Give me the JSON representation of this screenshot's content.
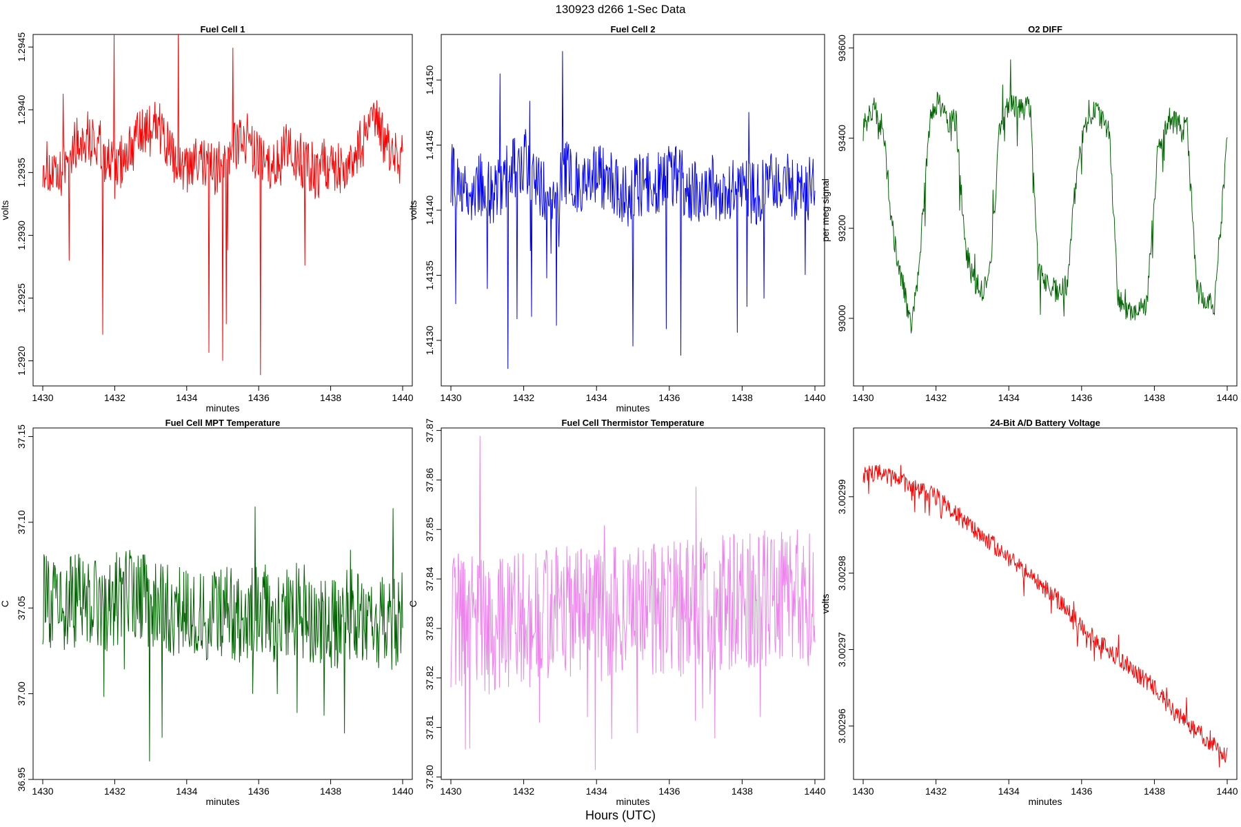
{
  "figure": {
    "title": "130923   d266   1-Sec Data",
    "xlabel": "Hours (UTC)"
  },
  "chart_data": [
    {
      "type": "line",
      "title": "Fuel Cell 1",
      "xlabel": "minutes",
      "ylabel": "volts",
      "color": "#ff0000",
      "xlim": [
        1430,
        1440
      ],
      "ylim": [
        1.2918,
        1.2946
      ],
      "xticks": [
        "1430",
        "1432",
        "1434",
        "1436",
        "1438",
        "1440"
      ],
      "yticks": [
        "1.2920",
        "1.2925",
        "1.2930",
        "1.2935",
        "1.2940",
        "1.2945"
      ],
      "series": [
        {
          "x": [
            1430.0,
            1430.4,
            1430.8,
            1431.2,
            1431.6,
            1432.0,
            1432.4,
            1432.8,
            1433.2,
            1433.6,
            1434.0,
            1434.4,
            1434.8,
            1435.2,
            1435.6,
            1436.0,
            1436.4,
            1436.8,
            1437.2,
            1437.6,
            1438.0,
            1438.4,
            1438.8,
            1439.2,
            1439.6,
            1440.0
          ],
          "y": [
            1.2936,
            1.2934,
            1.2937,
            1.2938,
            1.2937,
            1.2935,
            1.2937,
            1.2938,
            1.2939,
            1.2936,
            1.2935,
            1.2936,
            1.2935,
            1.2937,
            1.2938,
            1.2936,
            1.2935,
            1.2937,
            1.2936,
            1.2935,
            1.2936,
            1.2935,
            1.2937,
            1.2939,
            1.2937,
            1.2936
          ]
        }
      ]
    },
    {
      "type": "line",
      "title": "Fuel Cell 2",
      "xlabel": "minutes",
      "ylabel": "volts",
      "color": "#0000ff",
      "xlim": [
        1430,
        1440
      ],
      "ylim": [
        1.41265,
        1.41535
      ],
      "xticks": [
        "1430",
        "1432",
        "1434",
        "1436",
        "1438",
        "1440"
      ],
      "yticks": [
        "1.4130",
        "1.4135",
        "1.4140",
        "1.4145",
        "1.4150"
      ],
      "series": [
        {
          "x": [
            1430.0,
            1430.4,
            1430.8,
            1431.2,
            1431.6,
            1432.0,
            1432.4,
            1432.8,
            1433.2,
            1433.6,
            1434.0,
            1434.4,
            1434.8,
            1435.2,
            1435.6,
            1436.0,
            1436.4,
            1436.8,
            1437.2,
            1437.6,
            1438.0,
            1438.4,
            1438.8,
            1439.2,
            1439.6,
            1440.0
          ],
          "y": [
            1.4143,
            1.4141,
            1.4142,
            1.4141,
            1.4143,
            1.4144,
            1.4142,
            1.4141,
            1.4143,
            1.4142,
            1.4143,
            1.4142,
            1.4141,
            1.4142,
            1.4142,
            1.4143,
            1.4142,
            1.4141,
            1.4142,
            1.4141,
            1.4142,
            1.4141,
            1.4142,
            1.4142,
            1.4141,
            1.4142
          ]
        }
      ]
    },
    {
      "type": "line",
      "title": "O2 DIFF",
      "xlabel": "",
      "ylabel": "per meg signal",
      "color": "#006400",
      "xlim": [
        1430,
        1440
      ],
      "ylim": [
        92850,
        93630
      ],
      "xticks": [
        "1430",
        "1432",
        "1434",
        "1436",
        "1438",
        "1440"
      ],
      "yticks": [
        "93000",
        "93200",
        "93400",
        "93600"
      ],
      "series": [
        {
          "x": [
            1430.0,
            1430.3,
            1430.55,
            1430.8,
            1431.1,
            1431.3,
            1431.5,
            1431.7,
            1431.85,
            1432.1,
            1432.3,
            1432.55,
            1432.8,
            1433.0,
            1433.3,
            1433.5,
            1433.75,
            1434.0,
            1434.3,
            1434.6,
            1434.8,
            1435.1,
            1435.4,
            1435.6,
            1435.9,
            1436.2,
            1436.5,
            1436.75,
            1437.0,
            1437.25,
            1437.55,
            1437.8,
            1438.1,
            1438.4,
            1438.65,
            1438.9,
            1439.15,
            1439.4,
            1439.65,
            1440.0
          ],
          "y": [
            93420,
            93470,
            93420,
            93200,
            93070,
            92980,
            93080,
            93300,
            93460,
            93480,
            93440,
            93440,
            93160,
            93090,
            93060,
            93120,
            93420,
            93480,
            93460,
            93470,
            93110,
            93070,
            93060,
            93080,
            93360,
            93460,
            93450,
            93420,
            93050,
            93020,
            93010,
            93040,
            93380,
            93440,
            93430,
            93420,
            93080,
            93040,
            93030,
            93400
          ]
        }
      ]
    },
    {
      "type": "line",
      "title": "Fuel Cell MPT Temperature",
      "xlabel": "minutes",
      "ylabel": "C",
      "color": "#006400",
      "xlim": [
        1430,
        1440
      ],
      "ylim": [
        36.95,
        37.155
      ],
      "xticks": [
        "1430",
        "1432",
        "1434",
        "1436",
        "1438",
        "1440"
      ],
      "yticks": [
        "36.95",
        "37.00",
        "37.05",
        "37.10",
        "37.15"
      ],
      "series": [
        {
          "x": [
            1430.0,
            1430.5,
            1431.0,
            1431.5,
            1432.0,
            1432.5,
            1433.0,
            1433.5,
            1434.0,
            1434.5,
            1435.0,
            1435.5,
            1436.0,
            1436.5,
            1437.0,
            1437.5,
            1438.0,
            1438.5,
            1439.0,
            1439.5,
            1440.0
          ],
          "y": [
            37.055,
            37.05,
            37.055,
            37.05,
            37.055,
            37.06,
            37.05,
            37.05,
            37.045,
            37.045,
            37.05,
            37.04,
            37.05,
            37.045,
            37.05,
            37.045,
            37.04,
            37.045,
            37.045,
            37.04,
            37.045
          ]
        }
      ]
    },
    {
      "type": "line",
      "title": "Fuel Cell Thermistor Temperature",
      "xlabel": "minutes",
      "ylabel": "C",
      "color": "#ee82ee",
      "xlim": [
        1430,
        1440
      ],
      "ylim": [
        37.7995,
        37.8705
      ],
      "xticks": [
        "1430",
        "1432",
        "1434",
        "1436",
        "1438",
        "1440"
      ],
      "yticks": [
        "37.80",
        "37.81",
        "37.82",
        "37.83",
        "37.84",
        "37.85",
        "37.86",
        "37.87"
      ],
      "series": [
        {
          "x": [
            1430.0,
            1430.5,
            1431.0,
            1431.5,
            1432.0,
            1432.5,
            1433.0,
            1433.5,
            1434.0,
            1434.5,
            1435.0,
            1435.5,
            1436.0,
            1436.5,
            1437.0,
            1437.5,
            1438.0,
            1438.5,
            1439.0,
            1439.5,
            1440.0
          ],
          "y": [
            37.831,
            37.832,
            37.83,
            37.831,
            37.832,
            37.832,
            37.833,
            37.832,
            37.833,
            37.833,
            37.834,
            37.833,
            37.834,
            37.834,
            37.835,
            37.835,
            37.836,
            37.836,
            37.837,
            37.836,
            37.836
          ]
        }
      ]
    },
    {
      "type": "line",
      "title": "24-Bit A/D Battery Voltage",
      "xlabel": "minutes",
      "ylabel": "volts",
      "color": "#ff0000",
      "xlim": [
        1430,
        1440
      ],
      "ylim": [
        3.002953,
        3.002999
      ],
      "xticks": [
        "1430",
        "1432",
        "1434",
        "1436",
        "1438",
        "1440"
      ],
      "yticks": [
        "3.00296",
        "3.00297",
        "3.00298",
        "3.00299"
      ],
      "series": [
        {
          "x": [
            1430.0,
            1430.5,
            1431.0,
            1431.5,
            1432.0,
            1432.5,
            1433.0,
            1433.5,
            1434.0,
            1434.5,
            1435.0,
            1435.5,
            1436.0,
            1436.5,
            1437.0,
            1437.5,
            1438.0,
            1438.5,
            1439.0,
            1439.5,
            1440.0
          ],
          "y": [
            3.002993,
            3.002993,
            3.002992,
            3.002991,
            3.00299,
            3.002988,
            3.002986,
            3.002984,
            3.002982,
            3.00298,
            3.002978,
            3.002976,
            3.002973,
            3.002971,
            3.002969,
            3.002967,
            3.002965,
            3.002962,
            3.00296,
            3.002958,
            3.002956
          ]
        }
      ]
    }
  ]
}
